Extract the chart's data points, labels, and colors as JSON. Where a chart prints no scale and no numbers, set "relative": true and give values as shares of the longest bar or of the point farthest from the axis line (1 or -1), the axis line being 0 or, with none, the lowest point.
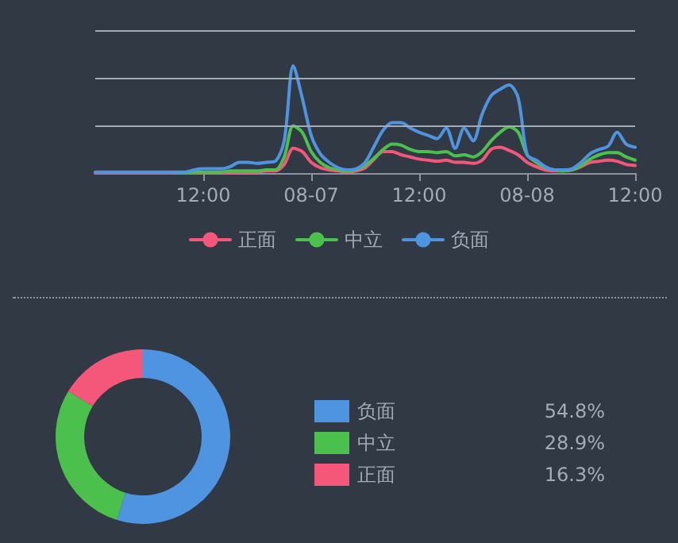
{
  "chart_data": [
    {
      "type": "line",
      "relative": true,
      "legend": "bottom",
      "marker": "none",
      "line_style": "solid",
      "ref_lines": [
        {
          "axis": "y",
          "value": 0.44,
          "color": "#a3abb6"
        },
        {
          "axis": "y",
          "value": 0.89,
          "color": "#a3abb6"
        },
        {
          "axis": "y",
          "value": 1.33,
          "color": "#a3abb6"
        }
      ],
      "categories": [
        null,
        null,
        null,
        null,
        null,
        null,
        null,
        null,
        null,
        null,
        null,
        null,
        "12:00",
        null,
        null,
        null,
        null,
        null,
        null,
        null,
        null,
        null,
        null,
        null,
        "08-07",
        null,
        null,
        null,
        null,
        null,
        null,
        null,
        null,
        null,
        null,
        null,
        "12:00",
        null,
        null,
        null,
        null,
        null,
        null,
        null,
        null,
        null,
        null,
        null,
        "08-08",
        null,
        null,
        null,
        null,
        null,
        null,
        null,
        null,
        null,
        null,
        null,
        "12:00"
      ],
      "series": [
        {
          "name": "正面",
          "color": "#f5577a",
          "values": [
            0,
            0,
            0,
            0,
            0,
            0,
            0,
            0,
            0,
            0,
            0,
            0,
            0.005,
            0.005,
            0.005,
            0.01,
            0.01,
            0.01,
            0.01,
            0.02,
            0.02,
            0.08,
            0.23,
            0.2,
            0.1,
            0.05,
            0.03,
            0.02,
            0.01,
            0.02,
            0.05,
            0.13,
            0.2,
            0.2,
            0.17,
            0.15,
            0.13,
            0.12,
            0.11,
            0.12,
            0.1,
            0.1,
            0.09,
            0.12,
            0.22,
            0.24,
            0.21,
            0.17,
            0.1,
            0.06,
            0.03,
            0.02,
            0.02,
            0.03,
            0.06,
            0.1,
            0.11,
            0.12,
            0.11,
            0.08,
            0.07
          ]
        },
        {
          "name": "中立",
          "color": "#4cc04c",
          "values": [
            null,
            null,
            null,
            null,
            null,
            null,
            null,
            null,
            null,
            0.005,
            0.005,
            0.01,
            0.01,
            0.01,
            0.01,
            0.02,
            0.02,
            0.02,
            0.02,
            0.03,
            0.03,
            0.15,
            0.44,
            0.38,
            0.2,
            0.1,
            0.05,
            0.03,
            0.02,
            0.03,
            0.07,
            0.14,
            0.22,
            0.27,
            0.26,
            0.22,
            0.2,
            0.2,
            0.19,
            0.2,
            0.16,
            0.17,
            0.15,
            0.2,
            0.3,
            0.38,
            0.43,
            0.38,
            0.17,
            0.1,
            0.05,
            0.03,
            0.02,
            0.03,
            0.07,
            0.13,
            0.17,
            0.19,
            0.19,
            0.15,
            0.12
          ]
        },
        {
          "name": "负面",
          "color": "#4f94e0",
          "values": [
            0.01,
            0.01,
            0.01,
            0.01,
            0.01,
            0.01,
            0.01,
            0.01,
            0.01,
            0.01,
            0.01,
            0.03,
            0.04,
            0.04,
            0.04,
            0.06,
            0.1,
            0.1,
            0.09,
            0.1,
            0.11,
            0.3,
            1,
            0.7,
            0.35,
            0.18,
            0.1,
            0.05,
            0.03,
            0.04,
            0.1,
            0.25,
            0.4,
            0.47,
            0.47,
            0.42,
            0.38,
            0.35,
            0.32,
            0.42,
            0.23,
            0.42,
            0.3,
            0.55,
            0.72,
            0.78,
            0.82,
            0.7,
            0.17,
            0.12,
            0.06,
            0.03,
            0.03,
            0.04,
            0.1,
            0.18,
            0.22,
            0.25,
            0.38,
            0.27,
            0.24
          ]
        }
      ]
    },
    {
      "type": "donut",
      "legend": "right",
      "categories": [
        "负面",
        "中立",
        "正面"
      ],
      "values": [
        54.8,
        28.9,
        16.3
      ],
      "colors": [
        "#4f94e0",
        "#4cc04c",
        "#f5577a"
      ],
      "value_labels": [
        "54.8%",
        "28.9%",
        "16.3%"
      ]
    }
  ]
}
